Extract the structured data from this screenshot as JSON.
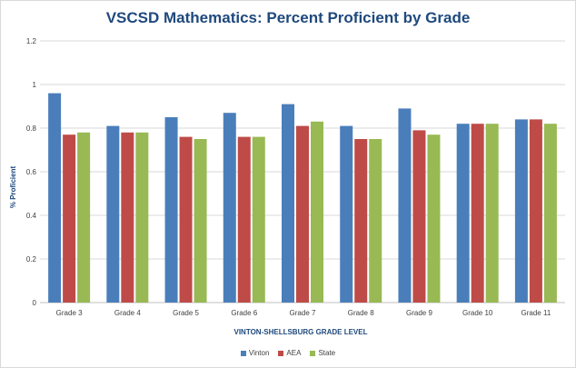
{
  "chart_data": {
    "type": "bar",
    "title": "VSCSD Mathematics: Percent Proficient by Grade",
    "xlabel": "VINTON-SHELLSBURG GRADE LEVEL",
    "ylabel": "% Proficient",
    "ylim": [
      0,
      1.2
    ],
    "yticks": [
      "0",
      "0.2",
      "0.4",
      "0.6",
      "0.8",
      "1",
      "1.2"
    ],
    "grid": true,
    "legend_position": "bottom",
    "categories": [
      "Grade 3",
      "Grade 4",
      "Grade 5",
      "Grade 6",
      "Grade 7",
      "Grade 8",
      "Grade 9",
      "Grade 10",
      "Grade 11"
    ],
    "series": [
      {
        "name": "Vinton",
        "color": "#4a7ebb",
        "values": [
          0.96,
          0.81,
          0.85,
          0.87,
          0.91,
          0.81,
          0.89,
          0.82,
          0.84
        ]
      },
      {
        "name": "AEA",
        "color": "#be4b48",
        "values": [
          0.77,
          0.78,
          0.76,
          0.76,
          0.81,
          0.75,
          0.79,
          0.82,
          0.84
        ]
      },
      {
        "name": "State",
        "color": "#98b954",
        "values": [
          0.78,
          0.78,
          0.75,
          0.76,
          0.83,
          0.75,
          0.77,
          0.82,
          0.82
        ]
      }
    ]
  }
}
